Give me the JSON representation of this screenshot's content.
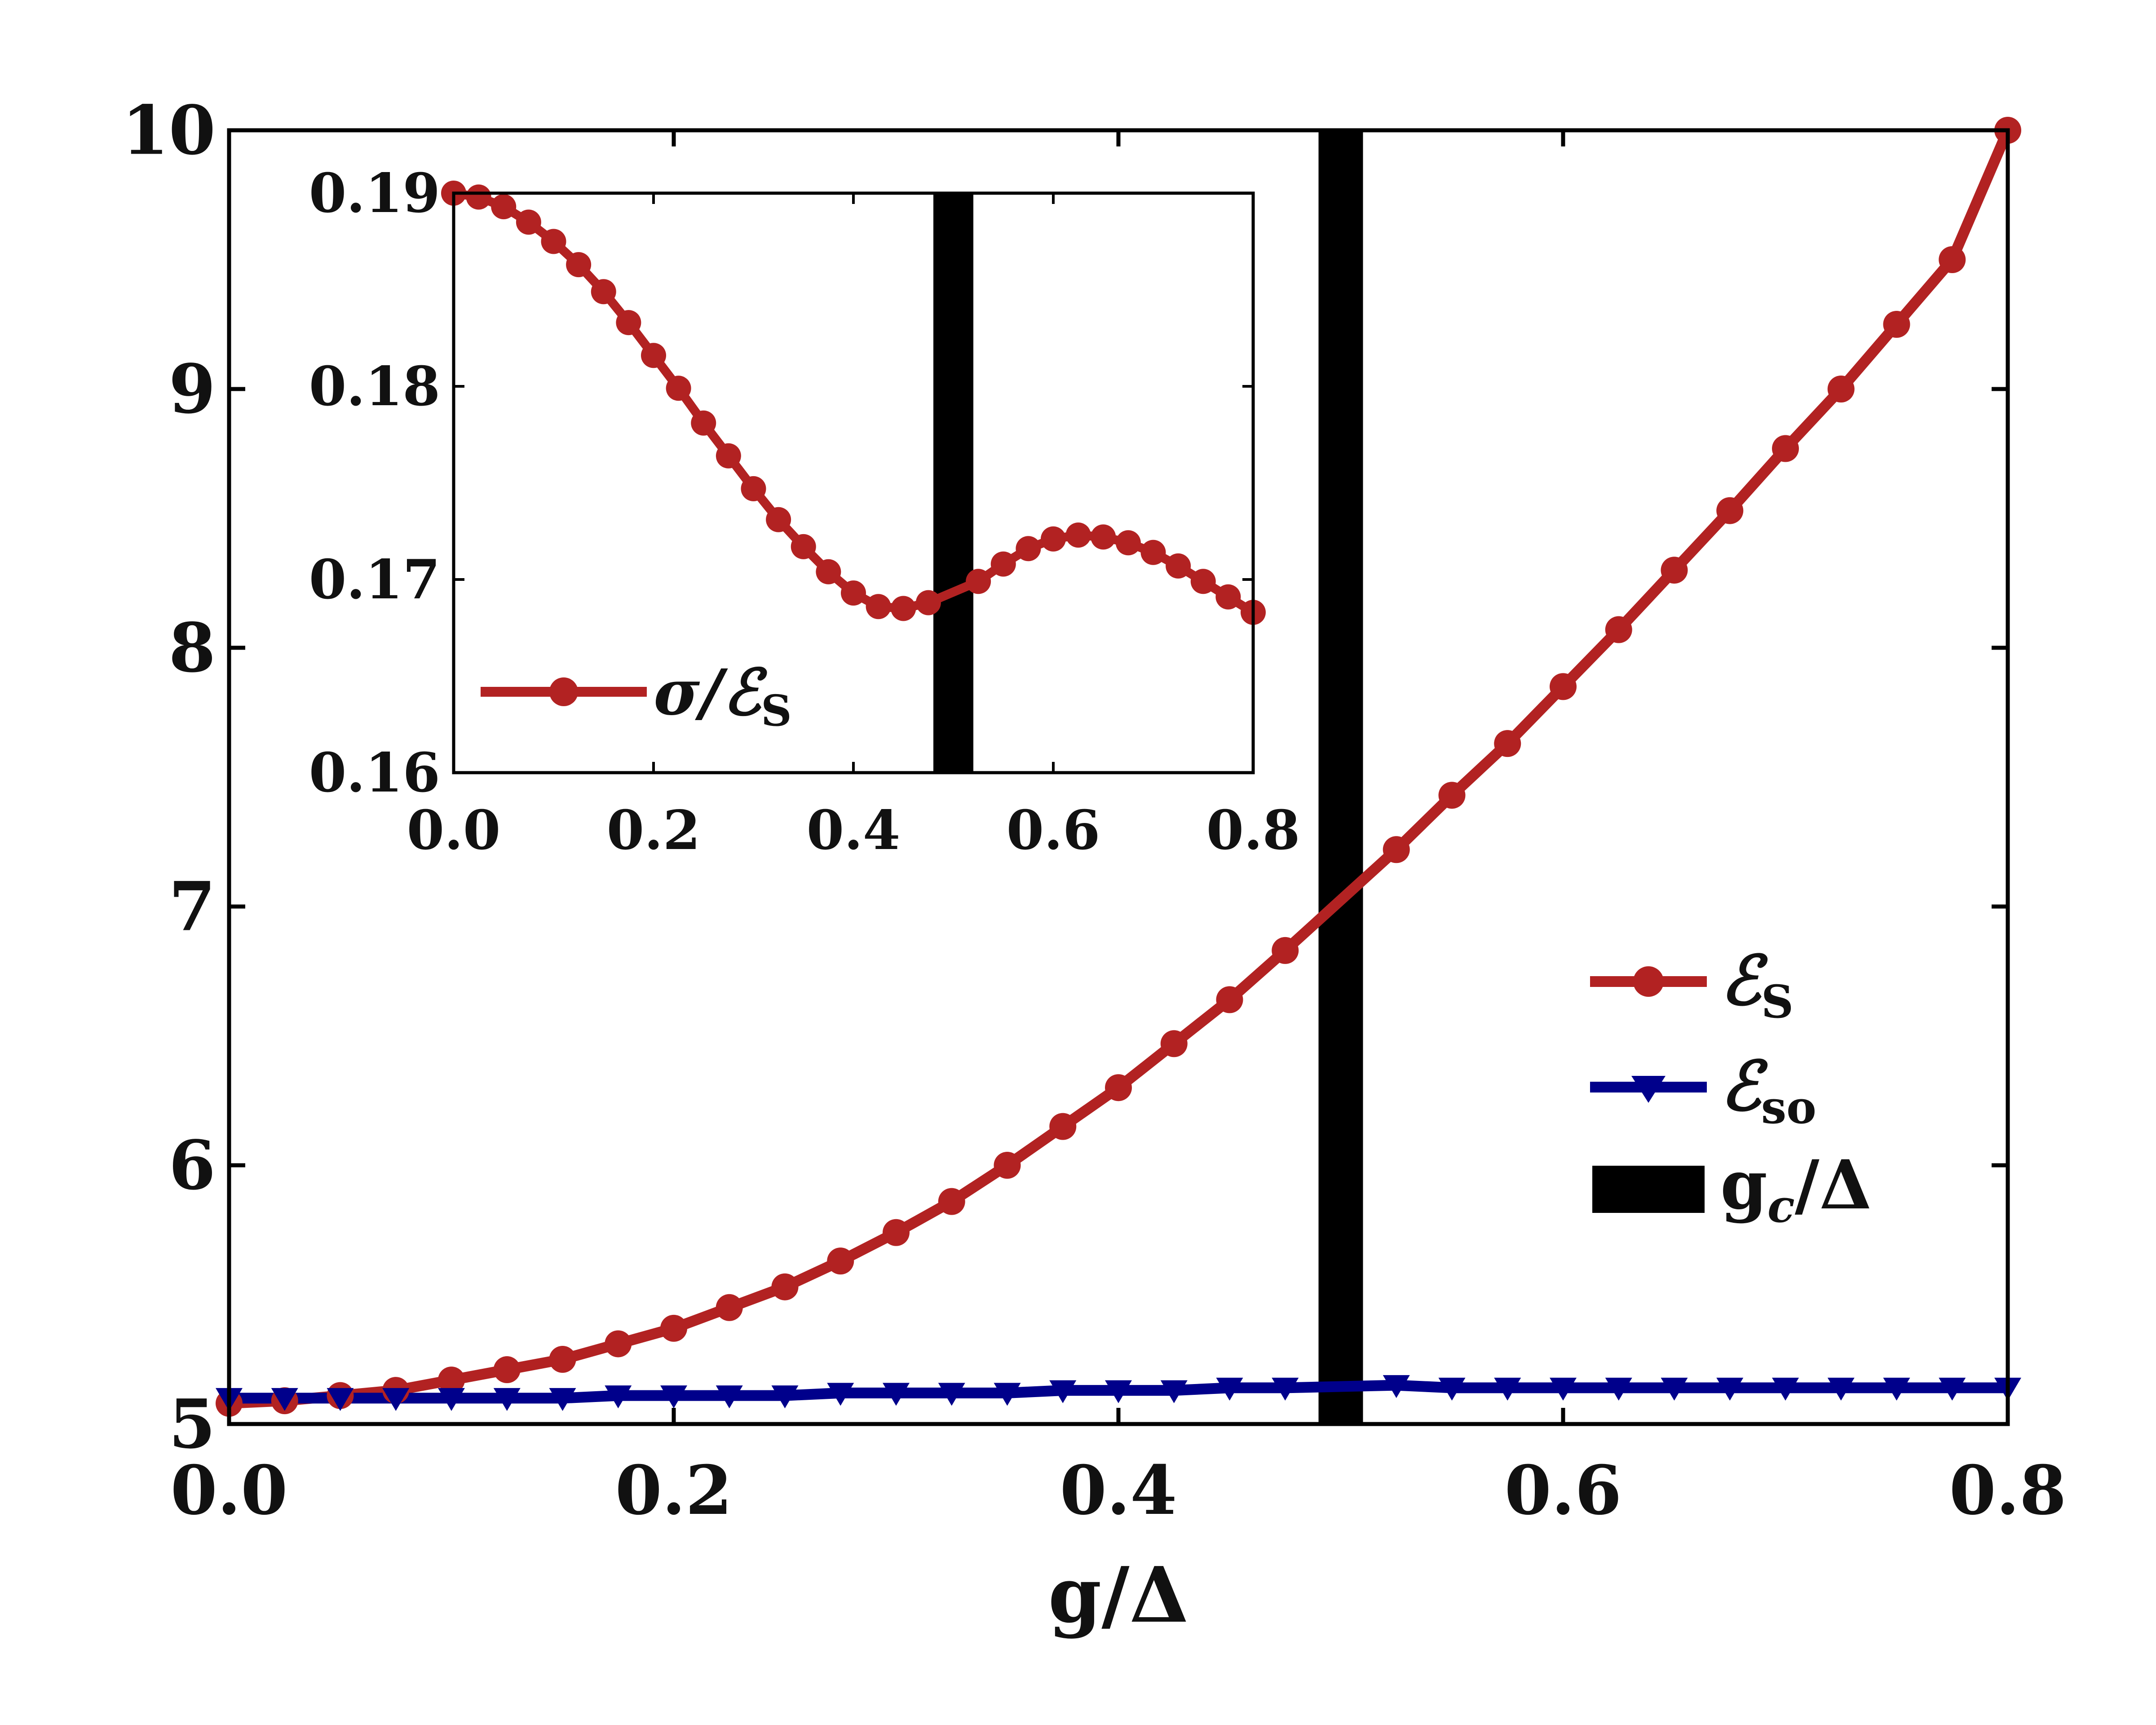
{
  "chart_data": [
    {
      "id": "main",
      "type": "line",
      "xlabel": "g/Δ",
      "ylabel": "",
      "xlim": [
        0.0,
        0.8
      ],
      "ylim": [
        5,
        10
      ],
      "xticks": [
        0.0,
        0.2,
        0.4,
        0.6,
        0.8
      ],
      "xtick_labels": [
        "0.0",
        "0.2",
        "0.4",
        "0.6",
        "0.8"
      ],
      "yticks": [
        5,
        6,
        7,
        8,
        9,
        10
      ],
      "ytick_labels": [
        "5",
        "6",
        "7",
        "8",
        "9",
        "10"
      ],
      "critical_band": {
        "label": "g_c/Δ",
        "x_start": 0.49,
        "x_end": 0.51,
        "color": "#000000"
      },
      "legend_position": "center-right",
      "series": [
        {
          "name": "ℰS",
          "label_symbol": "ℰ",
          "label_sub": "S",
          "color": "#b22222",
          "marker": "circle",
          "x": [
            0.0,
            0.025,
            0.05,
            0.075,
            0.1,
            0.125,
            0.15,
            0.175,
            0.2,
            0.225,
            0.25,
            0.275,
            0.3,
            0.325,
            0.35,
            0.375,
            0.4,
            0.425,
            0.45,
            0.475,
            0.525,
            0.55,
            0.575,
            0.6,
            0.625,
            0.65,
            0.675,
            0.7,
            0.725,
            0.75,
            0.775,
            0.8
          ],
          "y": [
            5.08,
            5.09,
            5.11,
            5.13,
            5.17,
            5.21,
            5.25,
            5.31,
            5.37,
            5.45,
            5.53,
            5.63,
            5.74,
            5.86,
            6.0,
            6.15,
            6.3,
            6.47,
            6.64,
            6.83,
            7.22,
            7.43,
            7.63,
            7.85,
            8.07,
            8.3,
            8.53,
            8.77,
            9.0,
            9.25,
            9.5,
            10.0
          ]
        },
        {
          "name": "ℰso",
          "label_symbol": "ℰ",
          "label_sub": "so",
          "color": "#00008b",
          "marker": "triangle-down",
          "x": [
            0.0,
            0.025,
            0.05,
            0.075,
            0.1,
            0.125,
            0.15,
            0.175,
            0.2,
            0.225,
            0.25,
            0.275,
            0.3,
            0.325,
            0.35,
            0.375,
            0.4,
            0.425,
            0.45,
            0.475,
            0.525,
            0.55,
            0.575,
            0.6,
            0.625,
            0.65,
            0.675,
            0.7,
            0.725,
            0.75,
            0.775,
            0.8
          ],
          "y": [
            5.1,
            5.1,
            5.1,
            5.1,
            5.1,
            5.1,
            5.1,
            5.11,
            5.11,
            5.11,
            5.11,
            5.12,
            5.12,
            5.12,
            5.12,
            5.13,
            5.13,
            5.13,
            5.14,
            5.14,
            5.15,
            5.14,
            5.14,
            5.14,
            5.14,
            5.14,
            5.14,
            5.14,
            5.14,
            5.14,
            5.14,
            5.14
          ]
        }
      ]
    },
    {
      "id": "inset",
      "type": "line",
      "xlabel": "",
      "ylabel": "",
      "xlim": [
        0.0,
        0.8
      ],
      "ylim": [
        0.16,
        0.19
      ],
      "xticks": [
        0.0,
        0.2,
        0.4,
        0.6,
        0.8
      ],
      "xtick_labels": [
        "0.0",
        "0.2",
        "0.4",
        "0.6",
        "0.8"
      ],
      "yticks": [
        0.16,
        0.17,
        0.18,
        0.19
      ],
      "ytick_labels": [
        "0.16",
        "0.17",
        "0.18",
        "0.19"
      ],
      "critical_band": {
        "x_start": 0.48,
        "x_end": 0.52,
        "color": "#000000"
      },
      "legend_position": "bottom-left",
      "series": [
        {
          "name": "σ/ℰS",
          "label_prefix": "σ/",
          "label_symbol": "ℰ",
          "label_sub": "S",
          "color": "#b22222",
          "marker": "circle",
          "x": [
            0.0,
            0.025,
            0.05,
            0.075,
            0.1,
            0.125,
            0.15,
            0.175,
            0.2,
            0.225,
            0.25,
            0.275,
            0.3,
            0.325,
            0.35,
            0.375,
            0.4,
            0.425,
            0.45,
            0.475,
            0.525,
            0.55,
            0.575,
            0.6,
            0.625,
            0.65,
            0.675,
            0.7,
            0.725,
            0.75,
            0.775,
            0.8
          ],
          "y": [
            0.19,
            0.1898,
            0.1893,
            0.1885,
            0.1875,
            0.1863,
            0.1849,
            0.1833,
            0.1816,
            0.1799,
            0.1781,
            0.1764,
            0.1747,
            0.1731,
            0.1717,
            0.1704,
            0.1693,
            0.1686,
            0.1685,
            0.1688,
            0.1699,
            0.1708,
            0.1716,
            0.1721,
            0.1723,
            0.1722,
            0.1719,
            0.1714,
            0.1707,
            0.1699,
            0.1691,
            0.1683
          ]
        }
      ]
    }
  ],
  "legend": {
    "entries": [
      {
        "symbol": "ℰ",
        "sub": "S"
      },
      {
        "symbol": "ℰ",
        "sub": "so"
      },
      {
        "text": "g",
        "sub": "c",
        "suffix": "/Δ"
      }
    ]
  }
}
